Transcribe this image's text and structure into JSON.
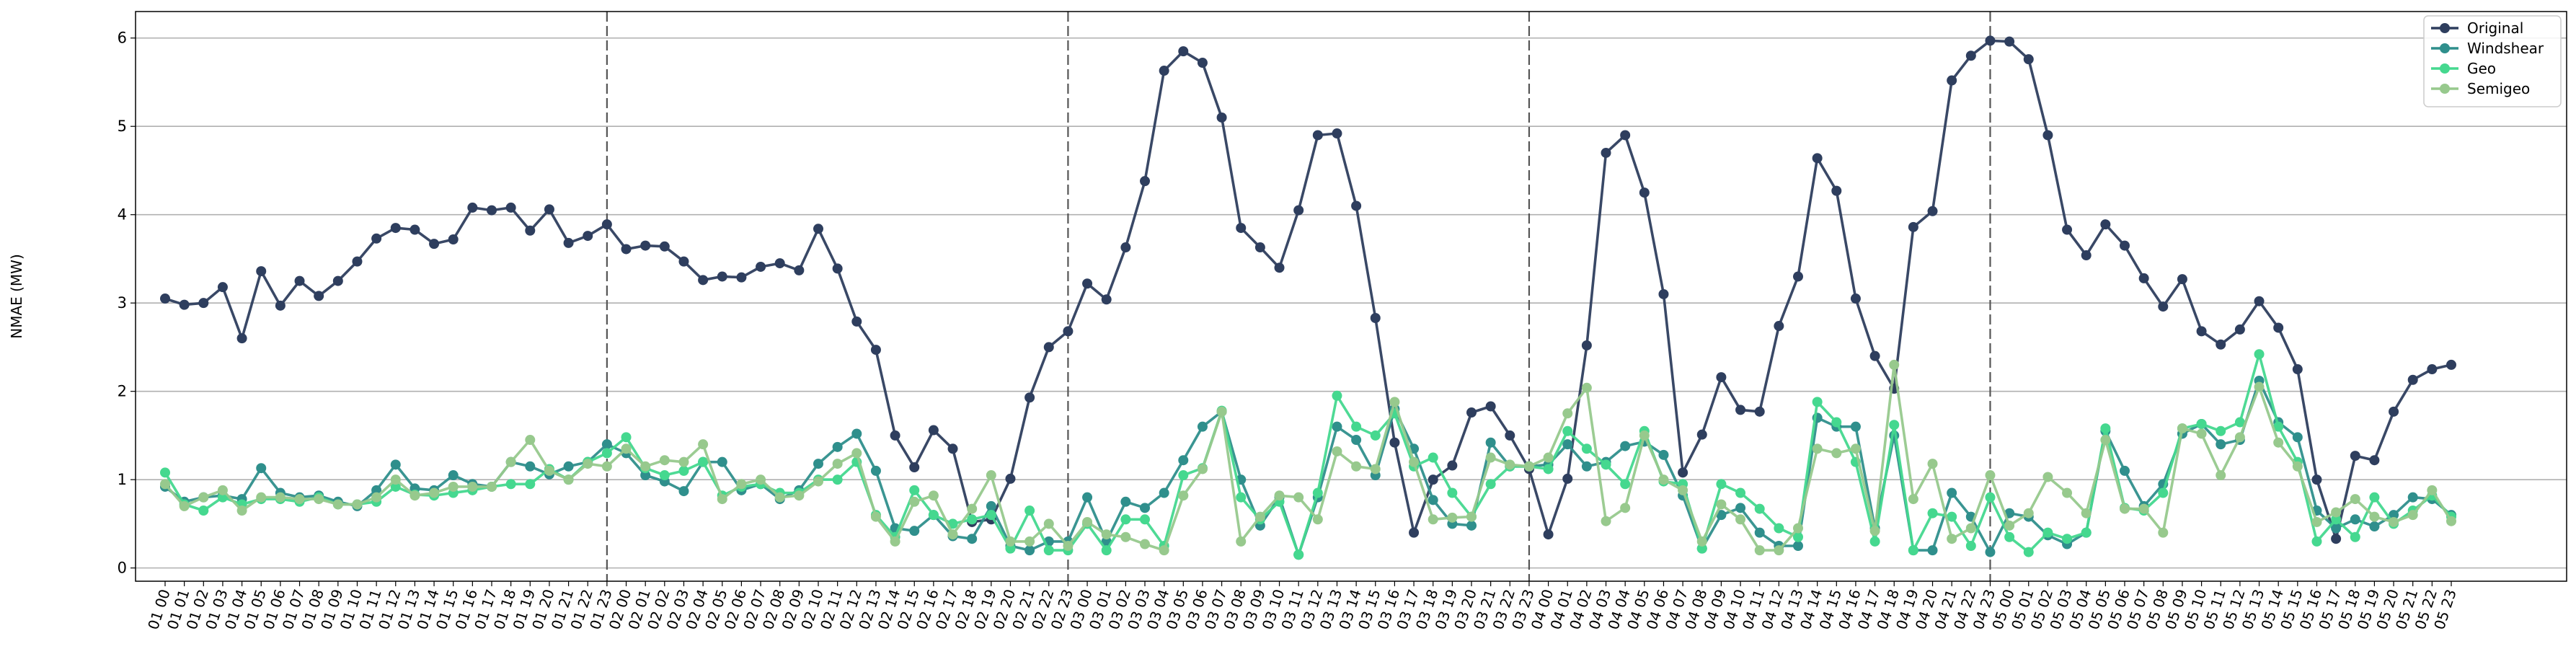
{
  "chart_data": {
    "type": "line",
    "title": "",
    "xlabel": "",
    "ylabel": "NMAE (MW)",
    "ylim": [
      -0.15,
      6.3
    ],
    "yticks": [
      0,
      1,
      2,
      3,
      4,
      5,
      6
    ],
    "grid": "horizontal",
    "legend_position": "top-right",
    "vlines": [
      "01 23",
      "02 23",
      "03 23",
      "04 23"
    ],
    "x": [
      "01 00",
      "01 01",
      "01 02",
      "01 03",
      "01 04",
      "01 05",
      "01 06",
      "01 07",
      "01 08",
      "01 09",
      "01 10",
      "01 11",
      "01 12",
      "01 13",
      "01 14",
      "01 15",
      "01 16",
      "01 17",
      "01 18",
      "01 19",
      "01 20",
      "01 21",
      "01 22",
      "01 23",
      "02 00",
      "02 01",
      "02 02",
      "02 03",
      "02 04",
      "02 05",
      "02 06",
      "02 07",
      "02 08",
      "02 09",
      "02 10",
      "02 11",
      "02 12",
      "02 13",
      "02 14",
      "02 15",
      "02 16",
      "02 17",
      "02 18",
      "02 19",
      "02 20",
      "02 21",
      "02 22",
      "02 23",
      "03 00",
      "03 01",
      "03 02",
      "03 03",
      "03 04",
      "03 05",
      "03 06",
      "03 07",
      "03 08",
      "03 09",
      "03 10",
      "03 11",
      "03 12",
      "03 13",
      "03 14",
      "03 15",
      "03 16",
      "03 17",
      "03 18",
      "03 19",
      "03 20",
      "03 21",
      "03 22",
      "03 23",
      "04 00",
      "04 01",
      "04 02",
      "04 03",
      "04 04",
      "04 05",
      "04 06",
      "04 07",
      "04 08",
      "04 09",
      "04 10",
      "04 11",
      "04 12",
      "04 13",
      "04 14",
      "04 15",
      "04 16",
      "04 17",
      "04 18",
      "04 19",
      "04 20",
      "04 21",
      "04 22",
      "04 23",
      "05 00",
      "05 01",
      "05 02",
      "05 03",
      "05 04",
      "05 05",
      "05 06",
      "05 07",
      "05 08",
      "05 09",
      "05 10",
      "05 11",
      "05 12",
      "05 13",
      "05 14",
      "05 15",
      "05 16",
      "05 17",
      "05 18",
      "05 19",
      "05 20",
      "05 21",
      "05 22",
      "05 23"
    ],
    "series": [
      {
        "name": "Original",
        "color": "#2e3e5e",
        "values": [
          3.05,
          2.98,
          3.0,
          3.18,
          2.6,
          3.36,
          2.97,
          3.25,
          3.08,
          3.25,
          3.47,
          3.73,
          3.85,
          3.83,
          3.67,
          3.72,
          4.08,
          4.05,
          4.08,
          3.82,
          4.06,
          3.68,
          3.76,
          3.89,
          3.61,
          3.65,
          3.64,
          3.47,
          3.26,
          3.3,
          3.29,
          3.41,
          3.45,
          3.37,
          3.84,
          3.39,
          2.79,
          2.47,
          1.5,
          1.14,
          1.56,
          1.35,
          0.52,
          0.55,
          1.01,
          1.93,
          2.5,
          2.68,
          3.22,
          3.04,
          3.63,
          4.38,
          5.63,
          5.85,
          5.72,
          5.1,
          3.85,
          3.63,
          3.4,
          4.05,
          4.9,
          4.92,
          4.1,
          2.83,
          1.42,
          0.4,
          1.0,
          1.16,
          1.76,
          1.83,
          1.5,
          1.12,
          0.38,
          1.01,
          2.52,
          4.7,
          4.9,
          4.25,
          3.1,
          1.08,
          1.51,
          2.16,
          1.79,
          1.77,
          2.74,
          3.3,
          4.64,
          4.27,
          3.05,
          2.4,
          2.03,
          3.86,
          4.04,
          5.52,
          5.8,
          5.97,
          5.96,
          5.76,
          4.9,
          3.83,
          3.54,
          3.89,
          3.65,
          3.28,
          2.96,
          3.27,
          2.68,
          2.53,
          2.7,
          3.02,
          2.72,
          2.25,
          1.0,
          0.33,
          1.27,
          1.22,
          1.77,
          2.13,
          2.25,
          2.3
        ]
      },
      {
        "name": "Windshear",
        "color": "#2f8f8c",
        "values": [
          0.92,
          0.75,
          0.8,
          0.82,
          0.78,
          1.13,
          0.85,
          0.8,
          0.82,
          0.75,
          0.7,
          0.88,
          1.17,
          0.9,
          0.88,
          1.05,
          0.95,
          0.92,
          1.2,
          1.15,
          1.06,
          1.15,
          1.2,
          1.4,
          1.3,
          1.05,
          0.98,
          0.87,
          1.2,
          1.2,
          0.88,
          0.95,
          0.78,
          0.88,
          1.18,
          1.37,
          1.52,
          1.1,
          0.45,
          0.42,
          0.6,
          0.36,
          0.33,
          0.7,
          0.25,
          0.2,
          0.3,
          0.3,
          0.8,
          0.3,
          0.75,
          0.68,
          0.85,
          1.22,
          1.6,
          1.77,
          1.0,
          0.48,
          0.8,
          0.15,
          0.8,
          1.6,
          1.45,
          1.05,
          1.8,
          1.35,
          0.77,
          0.5,
          0.48,
          1.42,
          1.15,
          1.15,
          1.17,
          1.4,
          1.15,
          1.2,
          1.38,
          1.43,
          1.28,
          0.82,
          0.22,
          0.6,
          0.68,
          0.4,
          0.25,
          0.25,
          1.7,
          1.6,
          1.6,
          0.45,
          1.5,
          0.2,
          0.2,
          0.85,
          0.58,
          0.18,
          0.62,
          0.58,
          0.37,
          0.27,
          0.4,
          1.55,
          1.1,
          0.7,
          0.95,
          1.52,
          1.63,
          1.4,
          1.45,
          2.12,
          1.65,
          1.48,
          0.65,
          0.45,
          0.55,
          0.47,
          0.6,
          0.8,
          0.78,
          0.6
        ]
      },
      {
        "name": "Geo",
        "color": "#45d88f",
        "values": [
          1.08,
          0.72,
          0.65,
          0.8,
          0.72,
          0.78,
          0.78,
          0.75,
          0.8,
          0.72,
          0.72,
          0.75,
          0.92,
          0.83,
          0.82,
          0.85,
          0.88,
          0.92,
          0.95,
          0.95,
          1.12,
          1.0,
          1.2,
          1.3,
          1.48,
          1.13,
          1.05,
          1.1,
          1.2,
          0.82,
          0.92,
          0.95,
          0.85,
          0.85,
          1.0,
          1.0,
          1.2,
          0.6,
          0.35,
          0.88,
          0.6,
          0.5,
          0.55,
          0.6,
          0.22,
          0.65,
          0.2,
          0.2,
          0.5,
          0.2,
          0.55,
          0.55,
          0.25,
          1.05,
          1.13,
          1.78,
          0.8,
          0.55,
          0.75,
          0.15,
          0.85,
          1.95,
          1.6,
          1.5,
          1.75,
          1.15,
          1.25,
          0.85,
          0.58,
          0.95,
          1.15,
          1.15,
          1.12,
          1.55,
          1.35,
          1.17,
          0.95,
          1.55,
          0.98,
          0.95,
          0.22,
          0.95,
          0.85,
          0.67,
          0.45,
          0.35,
          1.88,
          1.65,
          1.2,
          0.3,
          1.62,
          0.2,
          0.62,
          0.58,
          0.25,
          0.8,
          0.35,
          0.18,
          0.4,
          0.33,
          0.4,
          1.58,
          0.68,
          0.65,
          0.85,
          1.58,
          1.63,
          1.55,
          1.65,
          2.42,
          1.6,
          1.2,
          0.3,
          0.55,
          0.35,
          0.8,
          0.5,
          0.65,
          0.82,
          0.58
        ]
      },
      {
        "name": "Semigeo",
        "color": "#97c98d",
        "values": [
          0.95,
          0.7,
          0.8,
          0.88,
          0.65,
          0.8,
          0.8,
          0.78,
          0.78,
          0.72,
          0.72,
          0.8,
          1.0,
          0.82,
          0.85,
          0.92,
          0.92,
          0.92,
          1.2,
          1.45,
          1.1,
          1.0,
          1.18,
          1.15,
          1.35,
          1.15,
          1.22,
          1.2,
          1.4,
          0.78,
          0.95,
          1.0,
          0.8,
          0.82,
          0.98,
          1.18,
          1.3,
          0.58,
          0.3,
          0.75,
          0.82,
          0.38,
          0.67,
          1.05,
          0.3,
          0.3,
          0.5,
          0.25,
          0.52,
          0.38,
          0.35,
          0.27,
          0.2,
          0.82,
          1.12,
          1.77,
          0.3,
          0.58,
          0.82,
          0.8,
          0.55,
          1.32,
          1.15,
          1.12,
          1.88,
          1.2,
          0.55,
          0.57,
          0.58,
          1.25,
          1.17,
          1.15,
          1.25,
          1.75,
          2.04,
          0.53,
          0.68,
          1.5,
          1.0,
          0.88,
          0.3,
          0.72,
          0.55,
          0.2,
          0.2,
          0.45,
          1.35,
          1.3,
          1.35,
          0.42,
          2.3,
          0.78,
          1.18,
          0.33,
          0.45,
          1.05,
          0.48,
          0.62,
          1.03,
          0.85,
          0.62,
          1.45,
          0.67,
          0.67,
          0.4,
          1.58,
          1.52,
          1.05,
          1.48,
          2.05,
          1.42,
          1.15,
          0.52,
          0.63,
          0.78,
          0.58,
          0.52,
          0.6,
          0.88,
          0.53
        ]
      }
    ]
  }
}
